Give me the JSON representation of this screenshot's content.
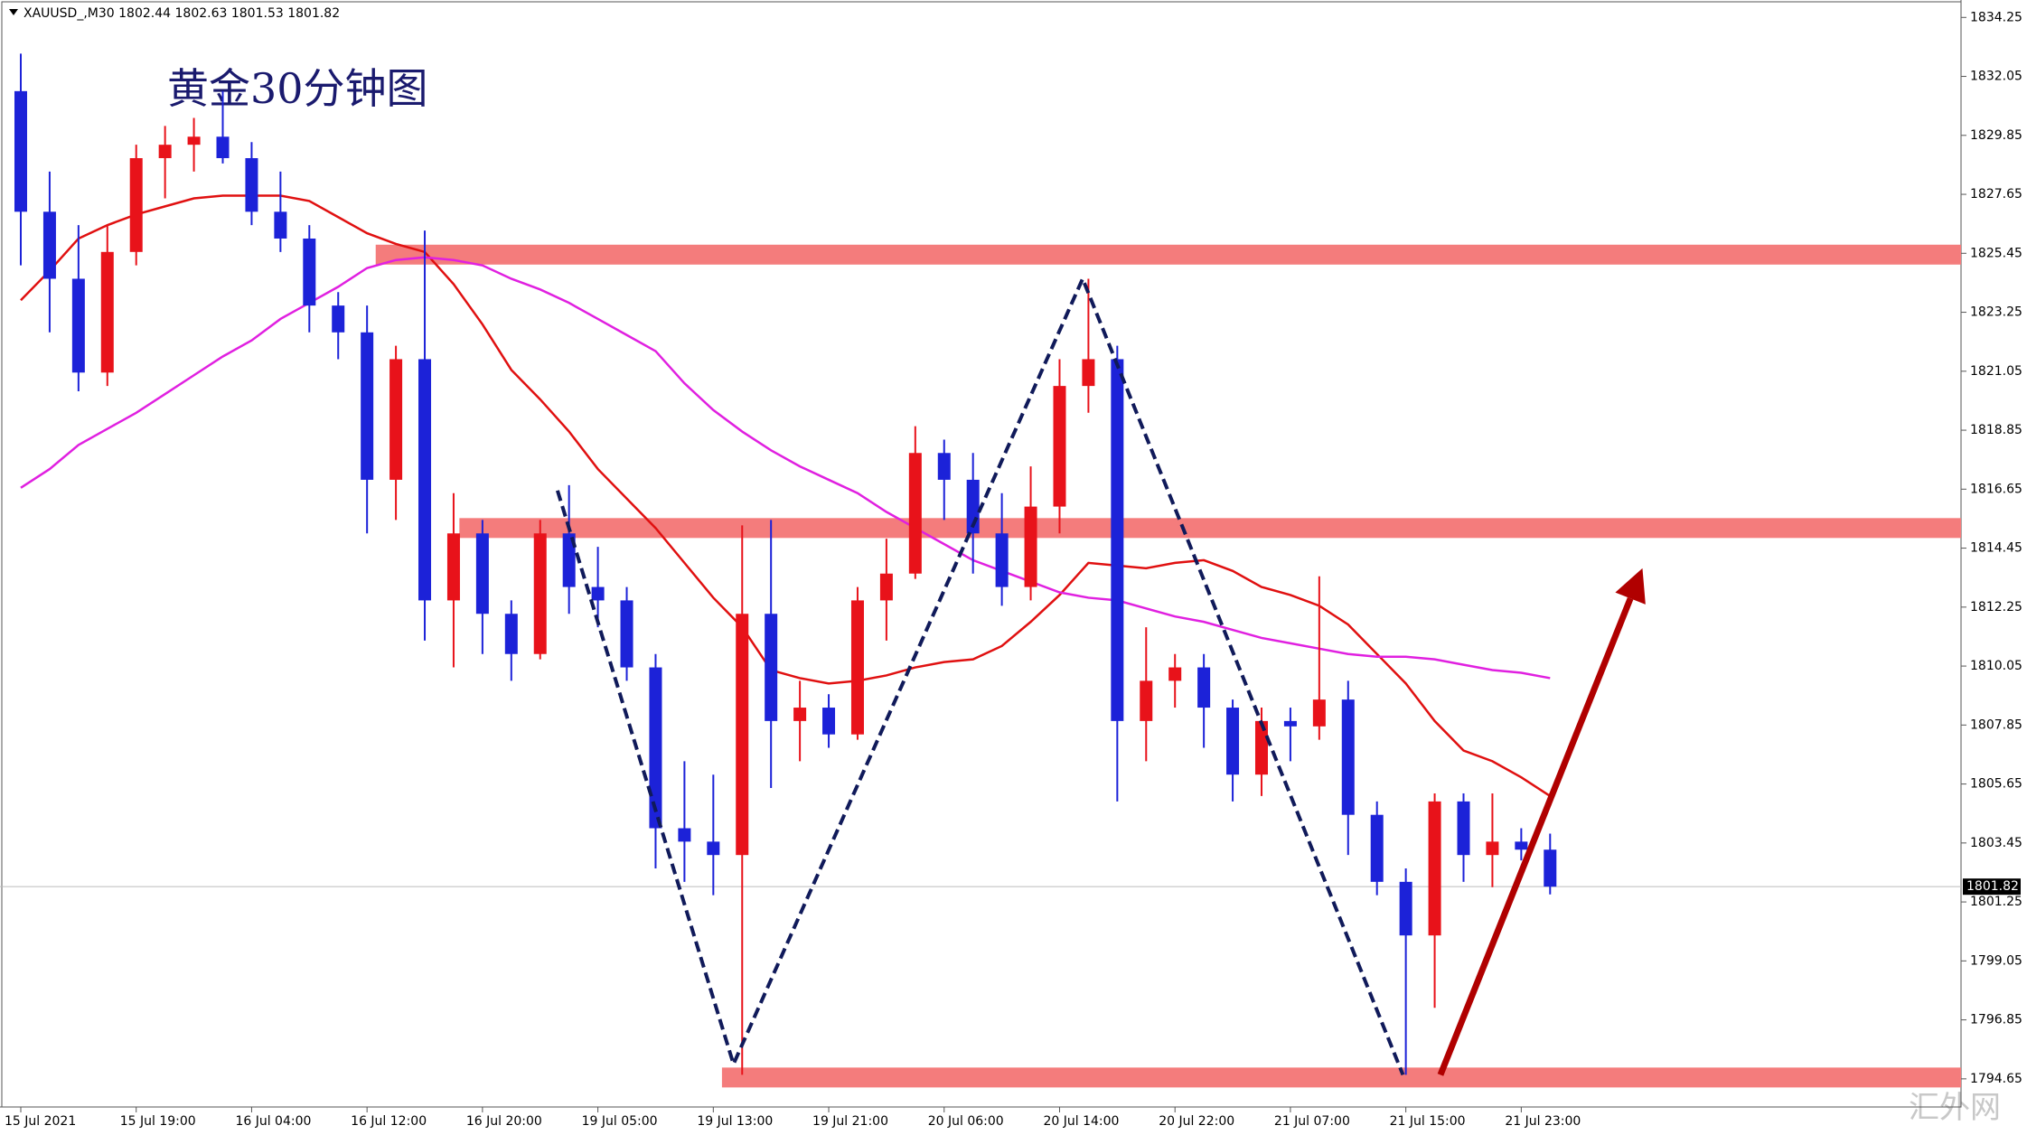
{
  "chart_data": {
    "type": "candlestick",
    "symbol": "XAUUSD_,M30",
    "header_ohlc": [
      1802.44,
      1802.63,
      1801.53,
      1801.82
    ],
    "title": "黄金30分钟图",
    "watermark": "汇外网",
    "categories": [
      "15 Jul 2021",
      null,
      null,
      null,
      "15 Jul 19:00",
      null,
      null,
      null,
      "16 Jul 04:00",
      null,
      null,
      null,
      "16 Jul 12:00",
      null,
      null,
      null,
      "16 Jul 20:00",
      null,
      null,
      null,
      "19 Jul 05:00",
      null,
      null,
      null,
      "19 Jul 13:00",
      null,
      null,
      null,
      "19 Jul 21:00",
      null,
      null,
      null,
      "20 Jul 06:00",
      null,
      null,
      null,
      "20 Jul 14:00",
      null,
      null,
      null,
      "20 Jul 22:00",
      null,
      null,
      null,
      "21 Jul 07:00",
      null,
      null,
      null,
      "21 Jul 15:00",
      null,
      null,
      null,
      "21 Jul 23:00",
      null
    ],
    "open": [
      1831.5,
      1827,
      1824.5,
      1821,
      1825.5,
      1829,
      1829.5,
      1829.8,
      1829,
      1827,
      1826,
      1823.5,
      1822.5,
      1817,
      1821.5,
      1812.5,
      1815,
      1812,
      1810.5,
      1815,
      1813,
      1812.5,
      1810,
      1804,
      1803.5,
      1803,
      1812,
      1808,
      1808.5,
      1807.5,
      1812.5,
      1813.5,
      1818,
      1817,
      1815,
      1813,
      1816,
      1820.5,
      1821.5,
      1808,
      1809.5,
      1810,
      1808.5,
      1806,
      1808,
      1807.8,
      1808.8,
      1804.5,
      1802,
      1800,
      1805,
      1803,
      1803.5,
      1803.2
    ],
    "high": [
      1832.9,
      1828.5,
      1826.5,
      1826.5,
      1829.5,
      1830.2,
      1830.5,
      1831.5,
      1829.6,
      1828.5,
      1826.5,
      1824,
      1823.5,
      1822,
      1826.3,
      1816.5,
      1815.5,
      1812.5,
      1815.5,
      1816.8,
      1814.5,
      1813,
      1810.5,
      1806.5,
      1806,
      1815.3,
      1815.5,
      1809.5,
      1809,
      1813,
      1814.8,
      1819,
      1818.5,
      1818,
      1816.5,
      1817.5,
      1821.5,
      1824.5,
      1822,
      1811.5,
      1810.5,
      1810.5,
      1808.8,
      1808.5,
      1808.5,
      1813.4,
      1809.5,
      1805,
      1802.5,
      1805.3,
      1805.3,
      1805.3,
      1804,
      1803.8
    ],
    "low": [
      1825,
      1822.5,
      1820.3,
      1820.5,
      1825,
      1827.5,
      1828.5,
      1828.8,
      1826.5,
      1825.5,
      1822.5,
      1821.5,
      1815,
      1815.5,
      1811,
      1810,
      1810.5,
      1809.5,
      1810.3,
      1812,
      1811.5,
      1809.5,
      1802.5,
      1802,
      1801.5,
      1794.8,
      1805.5,
      1806.5,
      1807,
      1807.3,
      1811,
      1813.3,
      1815.5,
      1813.5,
      1812.3,
      1812.5,
      1815,
      1819.5,
      1805,
      1806.5,
      1808.5,
      1807,
      1805,
      1805.2,
      1806.5,
      1807.3,
      1803,
      1801.5,
      1794.8,
      1797.3,
      1802,
      1801.8,
      1802.8,
      1801.53
    ],
    "close": [
      1827,
      1824.5,
      1821,
      1825.5,
      1829,
      1829.5,
      1829.8,
      1829,
      1827,
      1826,
      1823.5,
      1822.5,
      1817,
      1821.5,
      1812.5,
      1815,
      1812,
      1810.5,
      1815,
      1813,
      1812.5,
      1810,
      1804,
      1803.5,
      1803,
      1812,
      1808,
      1808.5,
      1807.5,
      1812.5,
      1813.5,
      1818,
      1817,
      1815,
      1813,
      1816,
      1820.5,
      1821.5,
      1808,
      1809.5,
      1810,
      1808.5,
      1806,
      1808,
      1807.8,
      1808.8,
      1804.5,
      1802,
      1800,
      1805,
      1803,
      1803.5,
      1803.2,
      1801.82
    ],
    "up_color": "#e8121a",
    "down_color": "#1c22d8",
    "series": [
      {
        "color": "#e01010",
        "values": [
          1823.7,
          1824.8,
          1826.0,
          1826.5,
          1826.9,
          1827.2,
          1827.5,
          1827.6,
          1827.6,
          1827.6,
          1827.4,
          1826.8,
          1826.2,
          1825.8,
          1825.5,
          1824.3,
          1822.8,
          1821.1,
          1820.0,
          1818.8,
          1817.4,
          1816.3,
          1815.2,
          1813.9,
          1812.6,
          1811.5,
          1809.9,
          1809.6,
          1809.4,
          1809.5,
          1809.7,
          1810.0,
          1810.2,
          1810.3,
          1810.8,
          1811.7,
          1812.7,
          1813.9,
          1813.8,
          1813.7,
          1813.9,
          1814.0,
          1813.6,
          1813.0,
          1812.7,
          1812.3,
          1811.6,
          1810.5,
          1809.4,
          1808.0,
          1806.9,
          1806.5,
          1805.9,
          1805.2
        ]
      },
      {
        "color": "#e020e0",
        "values": [
          1816.7,
          1817.4,
          1818.3,
          1818.9,
          1819.5,
          1820.2,
          1820.9,
          1821.6,
          1822.2,
          1823.0,
          1823.6,
          1824.2,
          1824.9,
          1825.2,
          1825.3,
          1825.2,
          1825.0,
          1824.5,
          1824.1,
          1823.6,
          1823.0,
          1822.4,
          1821.8,
          1820.6,
          1819.6,
          1818.8,
          1818.1,
          1817.5,
          1817.0,
          1816.5,
          1815.8,
          1815.2,
          1814.6,
          1814.0,
          1813.6,
          1813.2,
          1812.8,
          1812.6,
          1812.5,
          1812.2,
          1811.9,
          1811.7,
          1811.4,
          1811.1,
          1810.9,
          1810.7,
          1810.5,
          1810.4,
          1810.4,
          1810.3,
          1810.1,
          1809.9,
          1809.8,
          1809.6
        ]
      }
    ],
    "zones": [
      {
        "start": 12.3,
        "price": 1825.4
      },
      {
        "start": 15.2,
        "price": 1815.2
      },
      {
        "start": 24.3,
        "price": 1794.7
      }
    ],
    "zone_color": "#f47c7c",
    "zigzag": {
      "x": [
        18.6,
        24.7,
        36.8,
        47.9
      ],
      "y": [
        1816.6,
        1795.2,
        1824.5,
        1794.8
      ],
      "color": "#101a5a"
    },
    "arrow": {
      "x": [
        49.2,
        56.2
      ],
      "y": [
        1794.8,
        1813.7
      ],
      "color": "#b00000"
    },
    "current_price": 1801.82,
    "ylim": [
      1793.6,
      1834.9
    ],
    "yticks": [
      1834.25,
      1832.05,
      1829.85,
      1827.65,
      1825.45,
      1823.25,
      1821.05,
      1818.85,
      1816.65,
      1814.45,
      1812.25,
      1810.05,
      1807.85,
      1805.65,
      1803.45,
      1801.25,
      1799.05,
      1796.85,
      1794.65
    ]
  }
}
